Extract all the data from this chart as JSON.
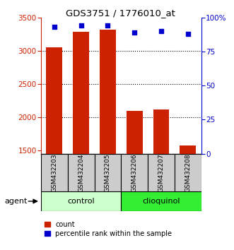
{
  "title": "GDS3751 / 1776010_at",
  "samples": [
    "GSM432203",
    "GSM432204",
    "GSM432205",
    "GSM432206",
    "GSM432207",
    "GSM432208"
  ],
  "counts": [
    3050,
    3280,
    3320,
    2090,
    2120,
    1570
  ],
  "percentiles": [
    93,
    94,
    94,
    89,
    90,
    88
  ],
  "group_colors": [
    "#ccffcc",
    "#33ee33"
  ],
  "bar_color": "#cc2200",
  "dot_color": "#0000cc",
  "ylim_left": [
    1450,
    3500
  ],
  "ylim_right": [
    0,
    100
  ],
  "yticks_left": [
    1500,
    2000,
    2500,
    3000,
    3500
  ],
  "yticks_right": [
    0,
    25,
    50,
    75,
    100
  ],
  "ytick_labels_right": [
    "0",
    "25",
    "50",
    "75",
    "100%"
  ],
  "grid_values": [
    2000,
    2500,
    3000
  ],
  "bar_width": 0.6
}
